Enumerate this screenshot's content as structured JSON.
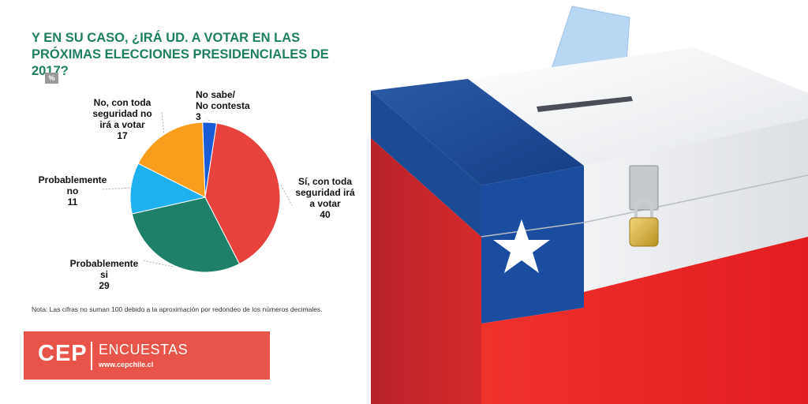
{
  "title": "Y EN SU CASO, ¿IRÁ UD. A VOTAR EN LAS PRÓXIMAS ELECCIONES PRESIDENCIALES DE 2017?",
  "unit_badge": "%",
  "note": "Nota:  Las cifras no suman 100 debido a la aproximación por redondeo de los números decimales.",
  "logo": {
    "brand": "CEP",
    "section": "ENCUESTAS",
    "url": "www.cepchile.cl"
  },
  "chart_data": {
    "type": "pie",
    "categories": [
      "No sabe/ No contesta",
      "Sí, con toda seguridad irá a votar",
      "Probablemente si",
      "Probablemente no",
      "No, con toda seguridad no irá a votar"
    ],
    "values": [
      3,
      40,
      29,
      11,
      17
    ],
    "colors": [
      "#1a5bd6",
      "#e8423c",
      "#1e8068",
      "#1fb0f0",
      "#f99d1c"
    ],
    "label_lines": [
      [
        "No sabe/",
        "No contesta"
      ],
      [
        "Sí, con toda",
        "seguridad irá",
        "a votar"
      ],
      [
        "Probablemente",
        "si"
      ],
      [
        "Probablemente",
        "no"
      ],
      [
        "No, con toda",
        "seguridad no",
        "irá a votar"
      ]
    ]
  }
}
